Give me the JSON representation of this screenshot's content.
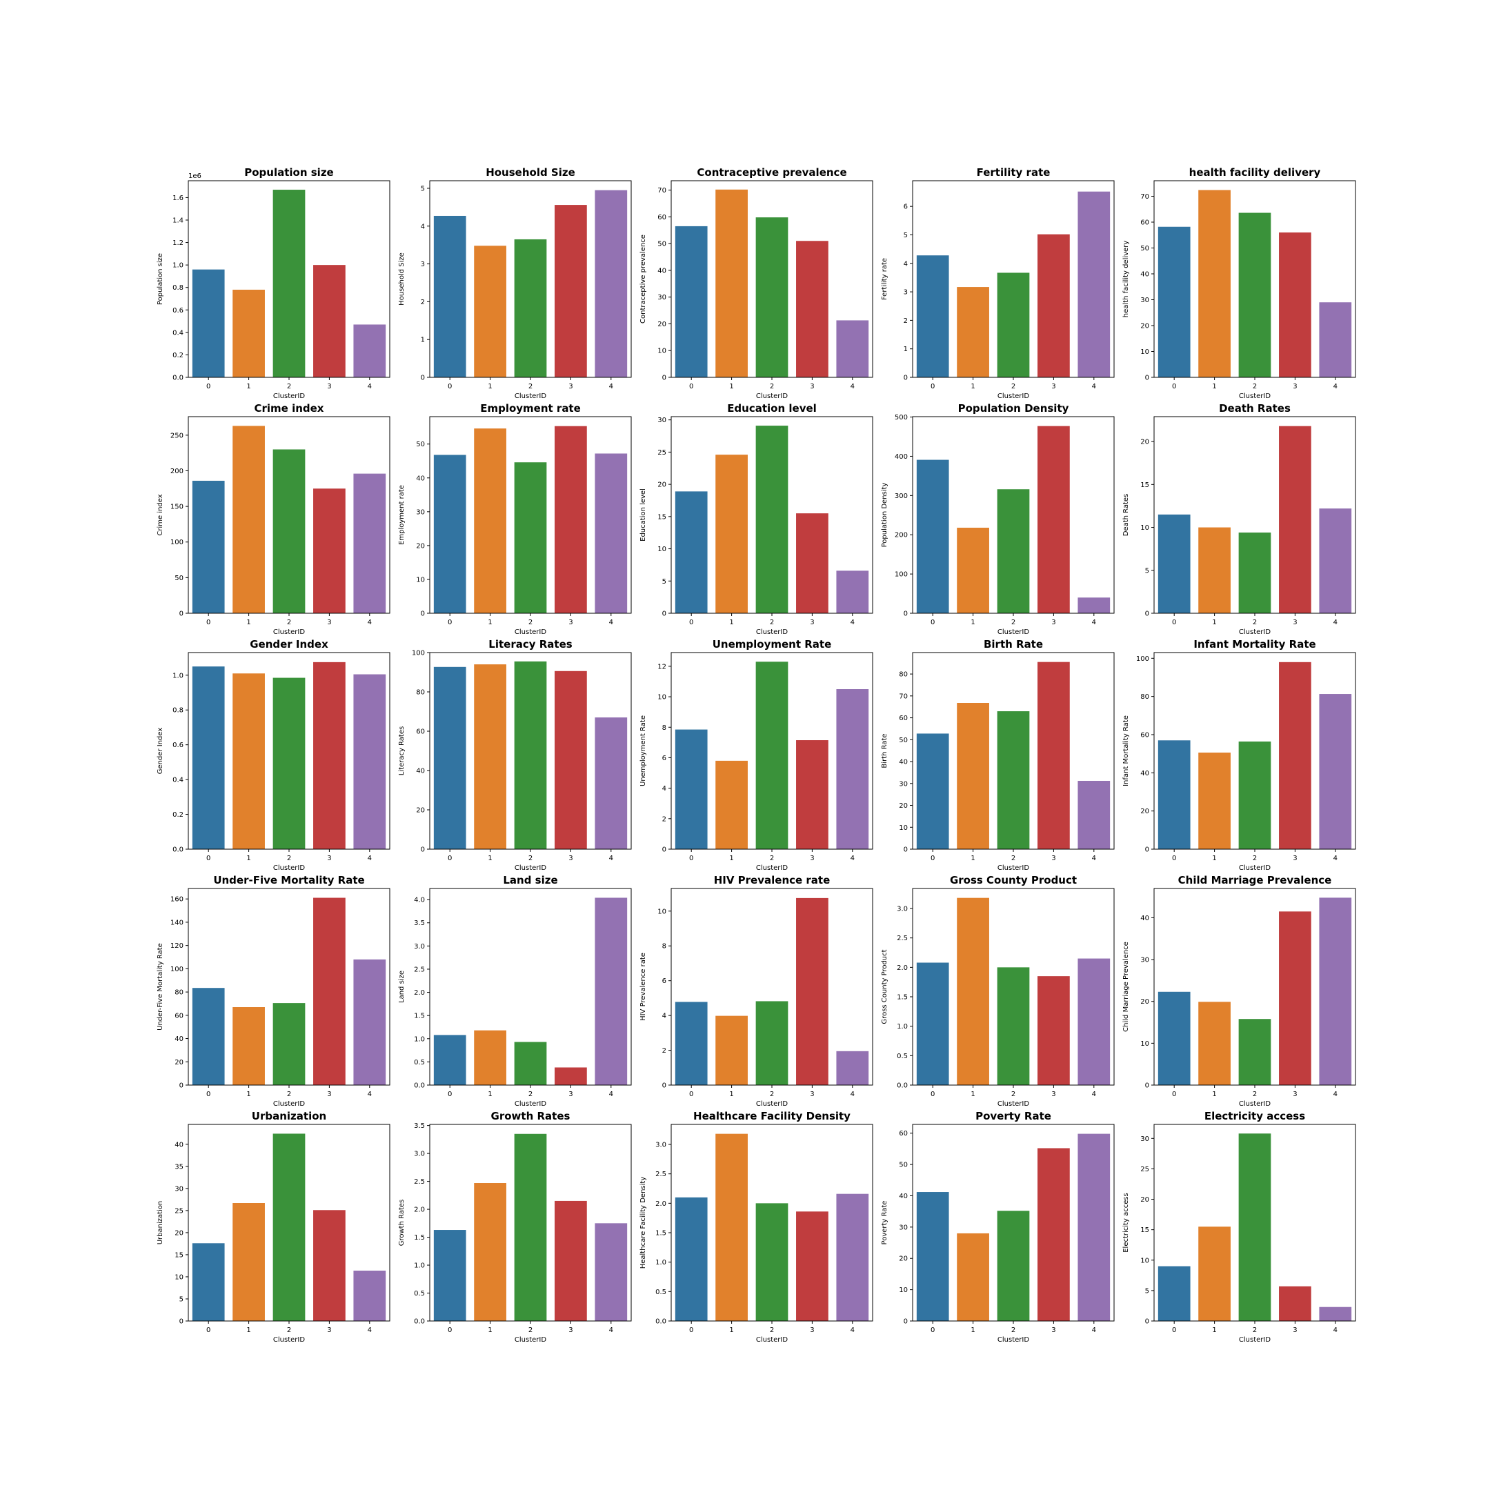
{
  "colors": {
    "palette": [
      "#3274a1",
      "#e1812c",
      "#3a923a",
      "#c03d3e",
      "#9372b2"
    ],
    "axis": "#000000",
    "background": "#ffffff"
  },
  "chart_data": [
    {
      "type": "bar",
      "title": "Population size",
      "xlabel": "ClusterID",
      "ylabel": "Population size",
      "categories": [
        "0",
        "1",
        "2",
        "3",
        "4"
      ],
      "values": [
        0.96,
        0.78,
        1.67,
        1.0,
        0.47
      ],
      "ylim": [
        0,
        1.75
      ],
      "yticks": [
        0,
        0.2,
        0.4,
        0.6,
        0.8,
        1.0,
        1.2,
        1.4,
        1.6
      ],
      "ytick_labels": [
        "0.0",
        "0.2",
        "0.4",
        "0.6",
        "0.8",
        "1.0",
        "1.2",
        "1.4",
        "1.6"
      ],
      "offset_label": "1e6",
      "grid": false
    },
    {
      "type": "bar",
      "title": "Household Size",
      "xlabel": "ClusterID",
      "ylabel": "Household Size",
      "categories": [
        "0",
        "1",
        "2",
        "3",
        "4"
      ],
      "values": [
        4.27,
        3.48,
        3.65,
        4.56,
        4.95
      ],
      "ylim": [
        0,
        5.2
      ],
      "yticks": [
        0,
        1,
        2,
        3,
        4,
        5
      ],
      "ytick_labels": [
        "0",
        "1",
        "2",
        "3",
        "4",
        "5"
      ],
      "grid": false
    },
    {
      "type": "bar",
      "title": "Contraceptive prevalence",
      "xlabel": "ClusterID",
      "ylabel": "Contraceptive prevalence",
      "categories": [
        "0",
        "1",
        "2",
        "3",
        "4"
      ],
      "values": [
        56.5,
        70.2,
        59.8,
        51.0,
        21.3
      ],
      "ylim": [
        0,
        73.5
      ],
      "yticks": [
        0,
        10,
        20,
        30,
        40,
        50,
        60,
        70
      ],
      "ytick_labels": [
        "0",
        "10",
        "20",
        "30",
        "40",
        "50",
        "60",
        "70"
      ],
      "grid": false
    },
    {
      "type": "bar",
      "title": "Fertility rate",
      "xlabel": "ClusterID",
      "ylabel": "Fertility rate",
      "categories": [
        "0",
        "1",
        "2",
        "3",
        "4"
      ],
      "values": [
        4.28,
        3.17,
        3.67,
        5.02,
        6.52
      ],
      "ylim": [
        0,
        6.9
      ],
      "yticks": [
        0,
        1,
        2,
        3,
        4,
        5,
        6
      ],
      "ytick_labels": [
        "0",
        "1",
        "2",
        "3",
        "4",
        "5",
        "6"
      ],
      "grid": false
    },
    {
      "type": "bar",
      "title": "health facility delivery",
      "xlabel": "ClusterID",
      "ylabel": "health facility delivery",
      "categories": [
        "0",
        "1",
        "2",
        "3",
        "4"
      ],
      "values": [
        58.2,
        72.4,
        63.6,
        56.0,
        29.0
      ],
      "ylim": [
        0,
        76.0
      ],
      "yticks": [
        0,
        10,
        20,
        30,
        40,
        50,
        60,
        70
      ],
      "ytick_labels": [
        "0",
        "10",
        "20",
        "30",
        "40",
        "50",
        "60",
        "70"
      ],
      "grid": false
    },
    {
      "type": "bar",
      "title": "Crime index",
      "xlabel": "ClusterID",
      "ylabel": "Crime index",
      "categories": [
        "0",
        "1",
        "2",
        "3",
        "4"
      ],
      "values": [
        186,
        263,
        230,
        175,
        196
      ],
      "ylim": [
        0,
        276
      ],
      "yticks": [
        0,
        50,
        100,
        150,
        200,
        250
      ],
      "ytick_labels": [
        "0",
        "50",
        "100",
        "150",
        "200",
        "250"
      ],
      "grid": false
    },
    {
      "type": "bar",
      "title": "Employment rate",
      "xlabel": "ClusterID",
      "ylabel": "Employment rate",
      "categories": [
        "0",
        "1",
        "2",
        "3",
        "4"
      ],
      "values": [
        46.8,
        54.6,
        44.6,
        55.3,
        47.2
      ],
      "ylim": [
        0,
        58.1
      ],
      "yticks": [
        0,
        10,
        20,
        30,
        40,
        50
      ],
      "ytick_labels": [
        "0",
        "10",
        "20",
        "30",
        "40",
        "50"
      ],
      "grid": false
    },
    {
      "type": "bar",
      "title": "Education level",
      "xlabel": "ClusterID",
      "ylabel": "Education level",
      "categories": [
        "0",
        "1",
        "2",
        "3",
        "4"
      ],
      "values": [
        18.9,
        24.6,
        29.1,
        15.5,
        6.6
      ],
      "ylim": [
        0,
        30.5
      ],
      "yticks": [
        0,
        5,
        10,
        15,
        20,
        25,
        30
      ],
      "ytick_labels": [
        "0",
        "5",
        "10",
        "15",
        "20",
        "25",
        "30"
      ],
      "grid": false
    },
    {
      "type": "bar",
      "title": "Population Density",
      "xlabel": "ClusterID",
      "ylabel": "Population Density",
      "categories": [
        "0",
        "1",
        "2",
        "3",
        "4"
      ],
      "values": [
        391,
        218,
        316,
        477,
        40
      ],
      "ylim": [
        0,
        501
      ],
      "yticks": [
        0,
        100,
        200,
        300,
        400,
        500
      ],
      "ytick_labels": [
        "0",
        "100",
        "200",
        "300",
        "400",
        "500"
      ],
      "grid": false
    },
    {
      "type": "bar",
      "title": "Death Rates",
      "xlabel": "ClusterID",
      "ylabel": "Death Rates",
      "categories": [
        "0",
        "1",
        "2",
        "3",
        "4"
      ],
      "values": [
        11.5,
        10.0,
        9.4,
        21.8,
        12.2
      ],
      "ylim": [
        0,
        22.9
      ],
      "yticks": [
        0,
        5,
        10,
        15,
        20
      ],
      "ytick_labels": [
        "0",
        "5",
        "10",
        "15",
        "20"
      ],
      "grid": false
    },
    {
      "type": "bar",
      "title": "Gender Index",
      "xlabel": "ClusterID",
      "ylabel": "Gender Index",
      "categories": [
        "0",
        "1",
        "2",
        "3",
        "4"
      ],
      "values": [
        1.05,
        1.01,
        0.985,
        1.075,
        1.005
      ],
      "ylim": [
        0,
        1.13
      ],
      "yticks": [
        0,
        0.2,
        0.4,
        0.6,
        0.8,
        1.0
      ],
      "ytick_labels": [
        "0.0",
        "0.2",
        "0.4",
        "0.6",
        "0.8",
        "1.0"
      ],
      "grid": false
    },
    {
      "type": "bar",
      "title": "Literacy Rates",
      "xlabel": "ClusterID",
      "ylabel": "Literacy Rates",
      "categories": [
        "0",
        "1",
        "2",
        "3",
        "4"
      ],
      "values": [
        92.7,
        94.0,
        95.5,
        90.6,
        67.0
      ],
      "ylim": [
        0,
        100
      ],
      "yticks": [
        0,
        20,
        40,
        60,
        80,
        100
      ],
      "ytick_labels": [
        "0",
        "20",
        "40",
        "60",
        "80",
        "100"
      ],
      "grid": false
    },
    {
      "type": "bar",
      "title": "Unemployment Rate",
      "xlabel": "ClusterID",
      "ylabel": "Unemployment Rate",
      "categories": [
        "0",
        "1",
        "2",
        "3",
        "4"
      ],
      "values": [
        7.85,
        5.8,
        12.3,
        7.15,
        10.5
      ],
      "ylim": [
        0,
        12.9
      ],
      "yticks": [
        0,
        2,
        4,
        6,
        8,
        10,
        12
      ],
      "ytick_labels": [
        "0",
        "2",
        "4",
        "6",
        "8",
        "10",
        "12"
      ],
      "grid": false
    },
    {
      "type": "bar",
      "title": "Birth Rate",
      "xlabel": "ClusterID",
      "ylabel": "Birth Rate",
      "categories": [
        "0",
        "1",
        "2",
        "3",
        "4"
      ],
      "values": [
        52.8,
        66.8,
        63.0,
        85.5,
        31.2
      ],
      "ylim": [
        0,
        89.8
      ],
      "yticks": [
        0,
        10,
        20,
        30,
        40,
        50,
        60,
        70,
        80
      ],
      "ytick_labels": [
        "0",
        "10",
        "20",
        "30",
        "40",
        "50",
        "60",
        "70",
        "80"
      ],
      "grid": false
    },
    {
      "type": "bar",
      "title": "Infant Mortality Rate",
      "xlabel": "ClusterID",
      "ylabel": "Infant Mortality Rate",
      "categories": [
        "0",
        "1",
        "2",
        "3",
        "4"
      ],
      "values": [
        57.0,
        50.6,
        56.4,
        98.0,
        81.3
      ],
      "ylim": [
        0,
        103
      ],
      "yticks": [
        0,
        20,
        40,
        60,
        80,
        100
      ],
      "ytick_labels": [
        "0",
        "20",
        "40",
        "60",
        "80",
        "100"
      ],
      "grid": false
    },
    {
      "type": "bar",
      "title": "Under-Five Mortality Rate",
      "xlabel": "ClusterID",
      "ylabel": "Under-Five Mortality Rate",
      "categories": [
        "0",
        "1",
        "2",
        "3",
        "4"
      ],
      "values": [
        83.5,
        67.0,
        70.5,
        161.0,
        108.0
      ],
      "ylim": [
        0,
        169
      ],
      "yticks": [
        0,
        20,
        40,
        60,
        80,
        100,
        120,
        140,
        160
      ],
      "ytick_labels": [
        "0",
        "20",
        "40",
        "60",
        "80",
        "100",
        "120",
        "140",
        "160"
      ],
      "grid": false
    },
    {
      "type": "bar",
      "title": "Land size",
      "xlabel": "ClusterID",
      "ylabel": "Land size",
      "categories": [
        "0",
        "1",
        "2",
        "3",
        "4"
      ],
      "values": [
        1.08,
        1.18,
        0.93,
        0.38,
        4.04
      ],
      "ylim": [
        0,
        4.24
      ],
      "yticks": [
        0,
        0.5,
        1.0,
        1.5,
        2.0,
        2.5,
        3.0,
        3.5,
        4.0
      ],
      "ytick_labels": [
        "0.0",
        "0.5",
        "1.0",
        "1.5",
        "2.0",
        "2.5",
        "3.0",
        "3.5",
        "4.0"
      ],
      "grid": false
    },
    {
      "type": "bar",
      "title": "HIV Prevalence rate",
      "xlabel": "ClusterID",
      "ylabel": "HIV Prevalence rate",
      "categories": [
        "0",
        "1",
        "2",
        "3",
        "4"
      ],
      "values": [
        4.78,
        3.98,
        4.82,
        10.75,
        1.95
      ],
      "ylim": [
        0,
        11.3
      ],
      "yticks": [
        0,
        2,
        4,
        6,
        8,
        10
      ],
      "ytick_labels": [
        "0",
        "2",
        "4",
        "6",
        "8",
        "10"
      ],
      "grid": false
    },
    {
      "type": "bar",
      "title": "Gross County Product",
      "xlabel": "ClusterID",
      "ylabel": "Gross County Product",
      "categories": [
        "0",
        "1",
        "2",
        "3",
        "4"
      ],
      "values": [
        2.08,
        3.18,
        2.0,
        1.85,
        2.15
      ],
      "ylim": [
        0,
        3.34
      ],
      "yticks": [
        0,
        0.5,
        1.0,
        1.5,
        2.0,
        2.5,
        3.0
      ],
      "ytick_labels": [
        "0.0",
        "0.5",
        "1.0",
        "1.5",
        "2.0",
        "2.5",
        "3.0"
      ],
      "grid": false
    },
    {
      "type": "bar",
      "title": "Child Marriage Prevalence",
      "xlabel": "ClusterID",
      "ylabel": "Child Marriage Prevalence",
      "categories": [
        "0",
        "1",
        "2",
        "3",
        "4"
      ],
      "values": [
        22.3,
        19.9,
        15.8,
        41.5,
        44.8
      ],
      "ylim": [
        0,
        47.0
      ],
      "yticks": [
        0,
        10,
        20,
        30,
        40
      ],
      "ytick_labels": [
        "0",
        "10",
        "20",
        "30",
        "40"
      ],
      "grid": false
    },
    {
      "type": "bar",
      "title": "Urbanization",
      "xlabel": "ClusterID",
      "ylabel": "Urbanization",
      "categories": [
        "0",
        "1",
        "2",
        "3",
        "4"
      ],
      "values": [
        17.6,
        26.7,
        42.4,
        25.1,
        11.4
      ],
      "ylim": [
        0,
        44.5
      ],
      "yticks": [
        0,
        5,
        10,
        15,
        20,
        25,
        30,
        35,
        40
      ],
      "ytick_labels": [
        "0",
        "5",
        "10",
        "15",
        "20",
        "25",
        "30",
        "35",
        "40"
      ],
      "grid": false
    },
    {
      "type": "bar",
      "title": "Growth Rates",
      "xlabel": "ClusterID",
      "ylabel": "Growth Rates",
      "categories": [
        "0",
        "1",
        "2",
        "3",
        "4"
      ],
      "values": [
        1.63,
        2.47,
        3.35,
        2.15,
        1.75
      ],
      "ylim": [
        0,
        3.52
      ],
      "yticks": [
        0,
        0.5,
        1.0,
        1.5,
        2.0,
        2.5,
        3.0,
        3.5
      ],
      "ytick_labels": [
        "0.0",
        "0.5",
        "1.0",
        "1.5",
        "2.0",
        "2.5",
        "3.0",
        "3.5"
      ],
      "grid": false
    },
    {
      "type": "bar",
      "title": "Healthcare Facility Density",
      "xlabel": "ClusterID",
      "ylabel": "Healthcare Facility Density",
      "categories": [
        "0",
        "1",
        "2",
        "3",
        "4"
      ],
      "values": [
        2.1,
        3.18,
        2.0,
        1.86,
        2.16
      ],
      "ylim": [
        0,
        3.34
      ],
      "yticks": [
        0,
        0.5,
        1.0,
        1.5,
        2.0,
        2.5,
        3.0
      ],
      "ytick_labels": [
        "0.0",
        "0.5",
        "1.0",
        "1.5",
        "2.0",
        "2.5",
        "3.0"
      ],
      "grid": false
    },
    {
      "type": "bar",
      "title": "Poverty Rate",
      "xlabel": "ClusterID",
      "ylabel": "Poverty Rate",
      "categories": [
        "0",
        "1",
        "2",
        "3",
        "4"
      ],
      "values": [
        41.2,
        28.0,
        35.2,
        55.2,
        59.8
      ],
      "ylim": [
        0,
        62.8
      ],
      "yticks": [
        0,
        10,
        20,
        30,
        40,
        50,
        60
      ],
      "ytick_labels": [
        "0",
        "10",
        "20",
        "30",
        "40",
        "50",
        "60"
      ],
      "grid": false
    },
    {
      "type": "bar",
      "title": "Electricity access",
      "xlabel": "ClusterID",
      "ylabel": "Electricity access",
      "categories": [
        "0",
        "1",
        "2",
        "3",
        "4"
      ],
      "values": [
        9.0,
        15.5,
        30.8,
        5.7,
        2.3
      ],
      "ylim": [
        0,
        32.3
      ],
      "yticks": [
        0,
        5,
        10,
        15,
        20,
        25,
        30
      ],
      "ytick_labels": [
        "0",
        "5",
        "10",
        "15",
        "20",
        "25",
        "30"
      ],
      "grid": false
    }
  ]
}
